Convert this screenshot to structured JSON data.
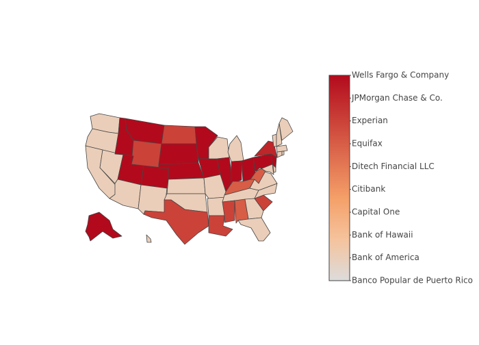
{
  "chart_data": {
    "type": "choropleth",
    "values": [
      1,
      1,
      1,
      1,
      9,
      9,
      7,
      9,
      1,
      9,
      1,
      7,
      9,
      9,
      1,
      1,
      7,
      9,
      9,
      1,
      1,
      7,
      1,
      9,
      1,
      9,
      9,
      6,
      1,
      7,
      6,
      1,
      1,
      7,
      1,
      1,
      6,
      9,
      8,
      1,
      1,
      9,
      1,
      1,
      1,
      1,
      1,
      1,
      9,
      1
    ],
    "colorscale": [
      [
        0,
        "rgb(220,220,220)"
      ],
      [
        0.2,
        "rgb(245,195,157)"
      ],
      [
        0.4,
        "rgb(245,160,105)"
      ],
      [
        1,
        "rgb(178,10,28)"
      ]
    ],
    "clim": [
      0,
      9
    ],
    "colorbar_ticks": [
      {
        "value": 0,
        "label": "Banco Popular de Puerto Rico"
      },
      {
        "value": 1,
        "label": "Bank of America"
      },
      {
        "value": 2,
        "label": "Bank of Hawaii"
      },
      {
        "value": 3,
        "label": "Capital One"
      },
      {
        "value": 4,
        "label": "Citibank"
      },
      {
        "value": 5,
        "label": "Ditech Financial LLC"
      },
      {
        "value": 6,
        "label": "Equifax"
      },
      {
        "value": 7,
        "label": "Experian"
      },
      {
        "value": 8,
        "label": "JPMorgan Chase & Co."
      },
      {
        "value": 9,
        "label": "Wells Fargo & Company"
      }
    ]
  }
}
